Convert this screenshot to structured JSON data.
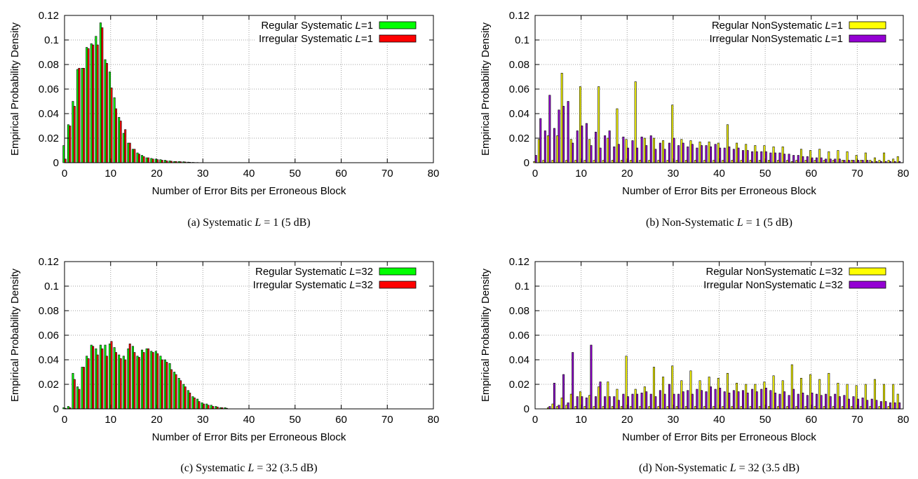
{
  "chart_data": [
    {
      "type": "bar",
      "xlabel": "Number of Error Bits per Erroneous Block",
      "ylabel": "Empirical Probability Density",
      "xlim": [
        0,
        80
      ],
      "ylim": [
        0,
        0.12
      ],
      "xticks": [
        "0",
        "10",
        "20",
        "30",
        "40",
        "50",
        "60",
        "70",
        "80"
      ],
      "yticks": [
        "0",
        "0.02",
        "0.04",
        "0.06",
        "0.08",
        "0.1",
        "0.12"
      ],
      "grid": true,
      "legend_position": "top-right",
      "caption": {
        "prefix": "(a) Systematic ",
        "math": "L = 1",
        "suffix": " (5 dB)"
      },
      "x": [
        0,
        1,
        2,
        3,
        4,
        5,
        6,
        7,
        8,
        9,
        10,
        11,
        12,
        13,
        14,
        15,
        16,
        17,
        18,
        19,
        20,
        21,
        22,
        23,
        24,
        25,
        26,
        27,
        28,
        29,
        30
      ],
      "series": [
        {
          "name_prefix": "Regular Systematic ",
          "name_var": "L",
          "name_suffix": "=1",
          "color": "#00ff00",
          "values": [
            0.014,
            0.031,
            0.05,
            0.076,
            0.077,
            0.094,
            0.097,
            0.103,
            0.114,
            0.084,
            0.074,
            0.053,
            0.037,
            0.024,
            0.016,
            0.011,
            0.008,
            0.006,
            0.004,
            0.0035,
            0.003,
            0.0025,
            0.002,
            0.0015,
            0.001,
            0.001,
            0.0008,
            0.0005,
            0.0003,
            0.0002,
            0.0001
          ]
        },
        {
          "name_prefix": "Irregular Systematic ",
          "name_var": "L",
          "name_suffix": "=1",
          "color": "#ff0000",
          "values": [
            0.003,
            0.03,
            0.046,
            0.077,
            0.077,
            0.093,
            0.096,
            0.096,
            0.11,
            0.081,
            0.061,
            0.044,
            0.034,
            0.027,
            0.016,
            0.011,
            0.007,
            0.005,
            0.004,
            0.003,
            0.0025,
            0.002,
            0.0015,
            0.0012,
            0.001,
            0.0008,
            0.0006,
            0.0004,
            0.0002,
            0.0001,
            0.0001
          ]
        }
      ]
    },
    {
      "type": "bar",
      "xlabel": "Number of Error Bits per Erroneous Block",
      "ylabel": "Empirical Probability Density",
      "xlim": [
        0,
        80
      ],
      "ylim": [
        0,
        0.12
      ],
      "xticks": [
        "0",
        "10",
        "20",
        "30",
        "40",
        "50",
        "60",
        "70",
        "80"
      ],
      "yticks": [
        "0",
        "0.02",
        "0.04",
        "0.06",
        "0.08",
        "0.1",
        "0.12"
      ],
      "grid": true,
      "legend_position": "top-right",
      "caption": {
        "prefix": "(b) Non-Systematic ",
        "math": "L = 1",
        "suffix": " (5 dB)"
      },
      "x": [
        0,
        1,
        2,
        3,
        4,
        5,
        6,
        7,
        8,
        9,
        10,
        11,
        12,
        13,
        14,
        15,
        16,
        17,
        18,
        19,
        20,
        21,
        22,
        23,
        24,
        25,
        26,
        27,
        28,
        29,
        30,
        31,
        32,
        33,
        34,
        35,
        36,
        37,
        38,
        39,
        40,
        41,
        42,
        43,
        44,
        45,
        46,
        47,
        48,
        49,
        50,
        51,
        52,
        53,
        54,
        55,
        56,
        57,
        58,
        59,
        60,
        61,
        62,
        63,
        64,
        65,
        66,
        67,
        68,
        69,
        70,
        71,
        72,
        73,
        74,
        75,
        76,
        77,
        78,
        79
      ],
      "series": [
        {
          "name_prefix": "Regular NonSystematic ",
          "name_var": "L",
          "name_suffix": "=1",
          "color": "#ffff00",
          "values": [
            0.001,
            0.019,
            0.002,
            0.022,
            0.002,
            0.022,
            0.073,
            0.002,
            0.019,
            0.002,
            0.062,
            0.002,
            0.019,
            0.002,
            0.062,
            0.002,
            0.02,
            0.002,
            0.044,
            0.002,
            0.019,
            0.002,
            0.066,
            0.002,
            0.02,
            0.002,
            0.02,
            0.002,
            0.018,
            0.002,
            0.047,
            0.002,
            0.019,
            0.002,
            0.018,
            0.002,
            0.017,
            0.002,
            0.017,
            0.002,
            0.016,
            0.002,
            0.031,
            0.002,
            0.016,
            0.002,
            0.015,
            0.002,
            0.014,
            0.002,
            0.014,
            0.002,
            0.013,
            0.002,
            0.013,
            0.002,
            0.001,
            0.002,
            0.011,
            0.002,
            0.01,
            0.002,
            0.011,
            0.002,
            0.009,
            0.002,
            0.01,
            0.002,
            0.009,
            0.002,
            0.006,
            0.002,
            0.008,
            0.002,
            0.004,
            0.002,
            0.008,
            0.002,
            0.003,
            0.005
          ]
        },
        {
          "name_prefix": "Irregular NonSystematic ",
          "name_var": "L",
          "name_suffix": "=1",
          "color": "#9400d3",
          "values": [
            0.006,
            0.036,
            0.026,
            0.055,
            0.028,
            0.043,
            0.046,
            0.05,
            0.016,
            0.026,
            0.03,
            0.032,
            0.014,
            0.025,
            0.012,
            0.022,
            0.026,
            0.013,
            0.015,
            0.021,
            0.012,
            0.018,
            0.012,
            0.021,
            0.014,
            0.022,
            0.011,
            0.016,
            0.011,
            0.016,
            0.02,
            0.014,
            0.016,
            0.013,
            0.015,
            0.012,
            0.014,
            0.014,
            0.013,
            0.015,
            0.012,
            0.012,
            0.013,
            0.011,
            0.012,
            0.01,
            0.01,
            0.009,
            0.009,
            0.009,
            0.009,
            0.008,
            0.008,
            0.008,
            0.007,
            0.007,
            0.006,
            0.006,
            0.005,
            0.005,
            0.004,
            0.004,
            0.004,
            0.003,
            0.003,
            0.003,
            0.003,
            0.002,
            0.002,
            0.002,
            0.002,
            0.002,
            0.002,
            0.001,
            0.001,
            0.001,
            0.001,
            0.001,
            0.001,
            0.001
          ]
        }
      ]
    },
    {
      "type": "bar",
      "xlabel": "Number of Error Bits per Erroneous Block",
      "ylabel": "Empirical Probability Density",
      "xlim": [
        0,
        80
      ],
      "ylim": [
        0,
        0.12
      ],
      "xticks": [
        "0",
        "10",
        "20",
        "30",
        "40",
        "50",
        "60",
        "70",
        "80"
      ],
      "yticks": [
        "0",
        "0.02",
        "0.04",
        "0.06",
        "0.08",
        "0.1",
        "0.12"
      ],
      "grid": true,
      "legend_position": "top-right",
      "caption": {
        "prefix": "(c) Systematic ",
        "math": "L = 32",
        "suffix": " (3.5 dB)"
      },
      "x": [
        0,
        1,
        2,
        3,
        4,
        5,
        6,
        7,
        8,
        9,
        10,
        11,
        12,
        13,
        14,
        15,
        16,
        17,
        18,
        19,
        20,
        21,
        22,
        23,
        24,
        25,
        26,
        27,
        28,
        29,
        30,
        31,
        32,
        33,
        34,
        35
      ],
      "series": [
        {
          "name_prefix": "Regular Systematic ",
          "name_var": "L",
          "name_suffix": "=32",
          "color": "#00ff00",
          "values": [
            0.001,
            0.002,
            0.029,
            0.018,
            0.034,
            0.043,
            0.052,
            0.049,
            0.052,
            0.052,
            0.053,
            0.05,
            0.044,
            0.043,
            0.049,
            0.051,
            0.043,
            0.048,
            0.049,
            0.047,
            0.047,
            0.043,
            0.04,
            0.037,
            0.03,
            0.025,
            0.02,
            0.015,
            0.01,
            0.008,
            0.005,
            0.004,
            0.003,
            0.002,
            0.001,
            0.001
          ]
        },
        {
          "name_prefix": "Irregular Systematic ",
          "name_var": "L",
          "name_suffix": "=32",
          "color": "#ff0000",
          "values": [
            0.0005,
            0.001,
            0.024,
            0.016,
            0.034,
            0.041,
            0.051,
            0.044,
            0.049,
            0.043,
            0.055,
            0.046,
            0.041,
            0.04,
            0.053,
            0.046,
            0.042,
            0.046,
            0.049,
            0.046,
            0.045,
            0.04,
            0.038,
            0.032,
            0.028,
            0.023,
            0.018,
            0.013,
            0.009,
            0.006,
            0.004,
            0.003,
            0.002,
            0.0015,
            0.001,
            0.0005
          ]
        }
      ]
    },
    {
      "type": "bar",
      "xlabel": "Number of Error Bits per Erroneous Block",
      "ylabel": "Empirical Probability Density",
      "xlim": [
        0,
        80
      ],
      "ylim": [
        0,
        0.12
      ],
      "xticks": [
        "0",
        "10",
        "20",
        "30",
        "40",
        "50",
        "60",
        "70",
        "80"
      ],
      "yticks": [
        "0",
        "0.02",
        "0.04",
        "0.06",
        "0.08",
        "0.1",
        "0.12"
      ],
      "grid": true,
      "legend_position": "top-right",
      "caption": {
        "prefix": "(d) Non-Systematic ",
        "math": "L = 32",
        "suffix": " (3.5 dB)"
      },
      "x": [
        3,
        4,
        5,
        6,
        7,
        8,
        9,
        10,
        11,
        12,
        13,
        14,
        15,
        16,
        17,
        18,
        19,
        20,
        21,
        22,
        23,
        24,
        25,
        26,
        27,
        28,
        29,
        30,
        31,
        32,
        33,
        34,
        35,
        36,
        37,
        38,
        39,
        40,
        41,
        42,
        43,
        44,
        45,
        46,
        47,
        48,
        49,
        50,
        51,
        52,
        53,
        54,
        55,
        56,
        57,
        58,
        59,
        60,
        61,
        62,
        63,
        64,
        65,
        66,
        67,
        68,
        69,
        70,
        71,
        72,
        73,
        74,
        75,
        76,
        77,
        78,
        79
      ],
      "series": [
        {
          "name_prefix": "Regular NonSystematic ",
          "name_var": "L",
          "name_suffix": "=32",
          "color": "#ffff00",
          "values": [
            0.001,
            0.004,
            0.002,
            0.009,
            0.003,
            0.012,
            0.002,
            0.014,
            0.002,
            0.011,
            0.002,
            0.018,
            0.002,
            0.022,
            0.002,
            0.016,
            0.002,
            0.043,
            0.002,
            0.016,
            0.002,
            0.018,
            0.002,
            0.034,
            0.002,
            0.026,
            0.002,
            0.035,
            0.002,
            0.023,
            0.002,
            0.031,
            0.002,
            0.023,
            0.002,
            0.026,
            0.002,
            0.025,
            0.002,
            0.029,
            0.002,
            0.021,
            0.002,
            0.02,
            0.002,
            0.02,
            0.002,
            0.022,
            0.002,
            0.027,
            0.002,
            0.023,
            0.002,
            0.036,
            0.002,
            0.025,
            0.002,
            0.028,
            0.002,
            0.024,
            0.002,
            0.029,
            0.002,
            0.021,
            0.002,
            0.02,
            0.002,
            0.019,
            0.002,
            0.02,
            0.002,
            0.024,
            0.002,
            0.02,
            0.002,
            0.02,
            0.012
          ]
        },
        {
          "name_prefix": "Irregular NonSystematic ",
          "name_var": "L",
          "name_suffix": "=32",
          "color": "#9400d3",
          "values": [
            0.002,
            0.021,
            0.003,
            0.028,
            0.005,
            0.046,
            0.01,
            0.01,
            0.009,
            0.052,
            0.01,
            0.022,
            0.01,
            0.01,
            0.01,
            0.007,
            0.012,
            0.01,
            0.012,
            0.012,
            0.013,
            0.014,
            0.012,
            0.01,
            0.015,
            0.012,
            0.02,
            0.012,
            0.012,
            0.014,
            0.015,
            0.012,
            0.016,
            0.015,
            0.014,
            0.018,
            0.016,
            0.017,
            0.014,
            0.013,
            0.015,
            0.014,
            0.015,
            0.013,
            0.016,
            0.014,
            0.016,
            0.017,
            0.015,
            0.013,
            0.012,
            0.014,
            0.011,
            0.016,
            0.012,
            0.013,
            0.011,
            0.013,
            0.012,
            0.011,
            0.012,
            0.01,
            0.012,
            0.01,
            0.011,
            0.008,
            0.01,
            0.008,
            0.009,
            0.007,
            0.008,
            0.007,
            0.006,
            0.006,
            0.005,
            0.005,
            0.005
          ]
        }
      ]
    }
  ]
}
